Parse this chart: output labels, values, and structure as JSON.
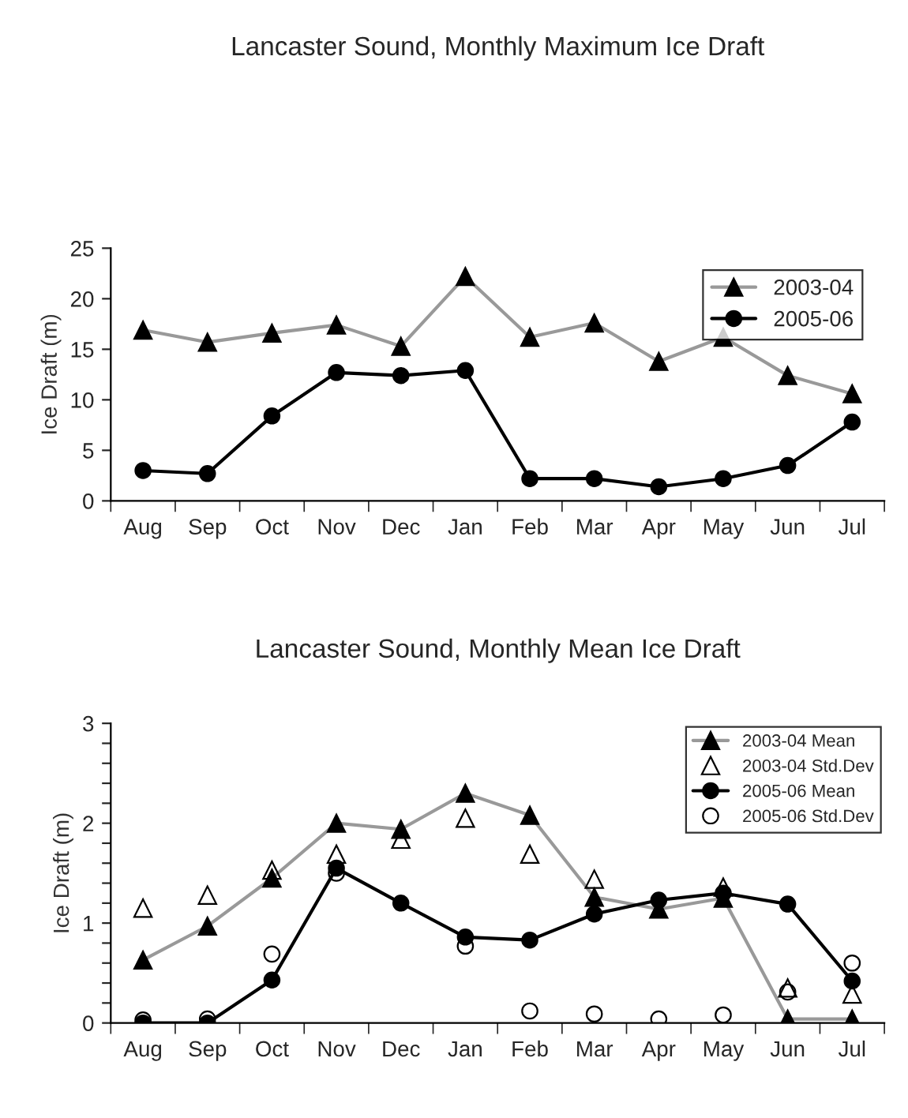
{
  "chart_data": [
    {
      "type": "line",
      "title": "Lancaster Sound, Monthly Maximum Ice Draft",
      "ylabel": "Ice Draft (m)",
      "categories": [
        "Aug",
        "Sep",
        "Oct",
        "Nov",
        "Dec",
        "Jan",
        "Feb",
        "Mar",
        "Apr",
        "May",
        "Jun",
        "Jul"
      ],
      "series": [
        {
          "name": "2003-04",
          "marker": "triangle",
          "color": "#999999",
          "values": [
            16.9,
            15.7,
            16.6,
            17.4,
            15.3,
            22.2,
            16.2,
            17.6,
            13.8,
            16.2,
            12.4,
            10.6
          ]
        },
        {
          "name": "2005-06",
          "marker": "circle",
          "color": "#000000",
          "values": [
            3.0,
            2.7,
            8.4,
            12.7,
            12.4,
            12.9,
            2.2,
            2.2,
            1.4,
            2.2,
            3.5,
            7.8
          ]
        }
      ],
      "ylim": [
        0,
        25
      ],
      "yticks": [
        0,
        5,
        10,
        15,
        20,
        25
      ],
      "grid": false,
      "legend": "top right"
    },
    {
      "type": "line",
      "title": "Lancaster Sound, Monthly Mean Ice Draft",
      "ylabel": "Ice Draft (m)",
      "categories": [
        "Aug",
        "Sep",
        "Oct",
        "Nov",
        "Dec",
        "Jan",
        "Feb",
        "Mar",
        "Apr",
        "May",
        "Jun",
        "Jul"
      ],
      "series": [
        {
          "name": "2003-04 Mean",
          "marker": "triangle",
          "color": "#999999",
          "values": [
            0.63,
            0.97,
            1.45,
            2.0,
            1.94,
            2.3,
            2.08,
            1.26,
            1.14,
            1.25,
            0.04,
            0.04
          ]
        },
        {
          "name": "2003-04 Std.Dev",
          "type": "scatter",
          "marker": "triangle",
          "color": "#000000",
          "values": [
            1.15,
            1.28,
            1.53,
            1.69,
            1.84,
            2.05,
            1.69,
            1.44,
            null,
            1.36,
            0.35,
            0.29
          ]
        },
        {
          "name": "2005-06 Mean",
          "marker": "circle",
          "color": "#000000",
          "values": [
            0.0,
            0.0,
            0.43,
            1.55,
            1.2,
            0.86,
            0.83,
            1.09,
            1.23,
            1.3,
            1.19,
            0.42
          ]
        },
        {
          "name": "2005-06 Std.Dev",
          "type": "scatter",
          "marker": "circle",
          "color": "#000000",
          "values": [
            0.03,
            0.04,
            0.69,
            1.5,
            null,
            0.77,
            0.12,
            0.09,
            0.04,
            0.08,
            0.31,
            0.6
          ]
        }
      ],
      "ylim": [
        0,
        3
      ],
      "yticks": [
        0,
        {
          "value": 0.2,
          "label": null
        },
        {
          "value": 0.4,
          "label": null
        },
        {
          "value": 0.6,
          "label": null
        },
        {
          "value": 0.8,
          "label": null
        },
        1,
        {
          "value": 1.2,
          "label": null
        },
        {
          "value": 1.4,
          "label": null
        },
        {
          "value": 1.6,
          "label": null
        },
        {
          "value": 1.8,
          "label": null
        },
        2,
        {
          "value": 2.2,
          "label": null
        },
        {
          "value": 2.4,
          "label": null
        },
        {
          "value": 2.6,
          "label": null
        },
        {
          "value": 2.8,
          "label": null
        },
        3
      ],
      "grid": false,
      "legend": "top right"
    }
  ]
}
